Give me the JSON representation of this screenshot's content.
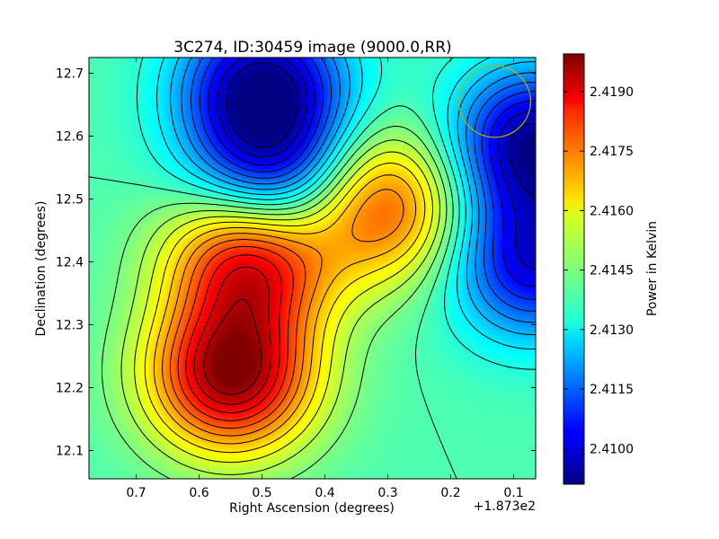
{
  "chart_data": {
    "type": "heatmap",
    "title": "3C274, ID:30459 image (9000.0,RR)",
    "xlabel": "Right Ascension (degrees)",
    "ylabel": "Declination (degrees)",
    "x_offset_label": "+1.873e2",
    "xlim": [
      0.775,
      0.065
    ],
    "ylim": [
      12.055,
      12.725
    ],
    "x_ticks": [
      0.7,
      0.6,
      0.5,
      0.4,
      0.3,
      0.2,
      0.1
    ],
    "x_tick_labels": [
      "0.7",
      "0.6",
      "0.5",
      "0.4",
      "0.3",
      "0.2",
      "0.1"
    ],
    "y_ticks": [
      12.1,
      12.2,
      12.3,
      12.4,
      12.5,
      12.6,
      12.7
    ],
    "y_tick_labels": [
      "12.1",
      "12.2",
      "12.3",
      "12.4",
      "12.5",
      "12.6",
      "12.7"
    ],
    "colorbar": {
      "label": "Power in Kelvin",
      "colormap": "jet",
      "range": [
        2.4091,
        2.41995
      ],
      "ticks": [
        2.41,
        2.4115,
        2.413,
        2.4145,
        2.416,
        2.4175,
        2.419
      ],
      "tick_labels": [
        "2.4100",
        "2.4115",
        "2.4130",
        "2.4145",
        "2.4160",
        "2.4175",
        "2.4190"
      ]
    },
    "grid": false,
    "map_features": [
      {
        "name": "maximum",
        "ra": 0.55,
        "dec": 12.22,
        "value": 2.4197
      },
      {
        "name": "maximum",
        "ra": 0.52,
        "dec": 12.41,
        "value": 2.4192
      },
      {
        "name": "maximum",
        "ra": 0.31,
        "dec": 12.49,
        "value": 2.4178
      },
      {
        "name": "minimum",
        "ra": 0.5,
        "dec": 12.68,
        "value": 2.4094
      },
      {
        "name": "minimum",
        "ra": 0.07,
        "dec": 12.59,
        "value": 2.4093
      },
      {
        "name": "minimum",
        "ra": 0.07,
        "dec": 12.4,
        "value": 2.4102
      },
      {
        "name": "minimum",
        "ra": 0.485,
        "dec": 12.53,
        "value": 2.4103
      }
    ],
    "beam_marker": {
      "shape": "circle",
      "ra": 0.13,
      "dec": 12.655,
      "radius_deg": 0.057,
      "color": "#b5b400"
    },
    "contour_color": "#000000"
  }
}
